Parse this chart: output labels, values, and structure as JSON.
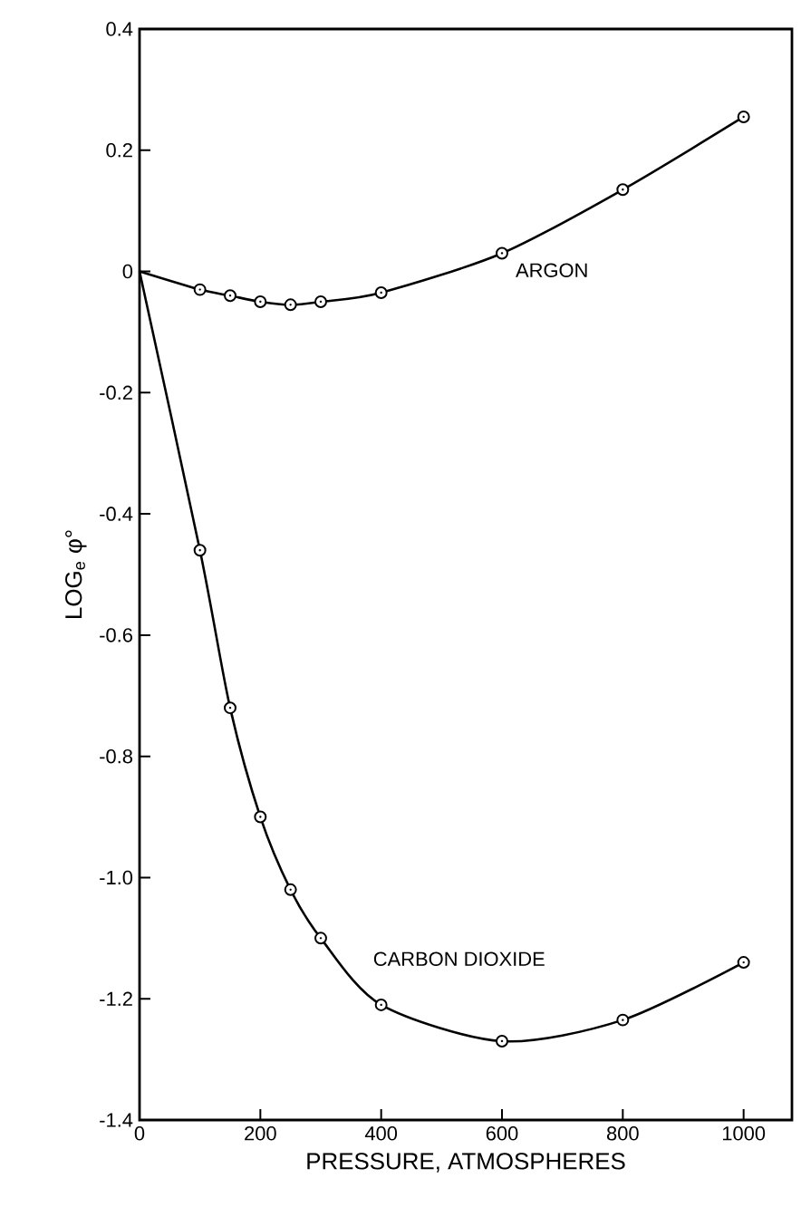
{
  "chart_data": {
    "type": "line",
    "xlabel": "PRESSURE, ATMOSPHERES",
    "ylabel": "LOG$_{e}$ φ°",
    "xlim": [
      0,
      1080
    ],
    "ylim": [
      -1.4,
      0.4
    ],
    "xticks": [
      0,
      200,
      400,
      600,
      800,
      1000
    ],
    "yticks": [
      0.4,
      0.2,
      0,
      -0.2,
      -0.4,
      -0.6,
      -0.8,
      {
        "value": -1.0,
        "label": "-1.0"
      },
      -1.2,
      -1.4
    ],
    "grid": false,
    "marker": "circle",
    "line_style": "solid",
    "series": [
      {
        "name": "ARGON",
        "color": "#000000",
        "x": [
          0,
          100,
          150,
          200,
          250,
          300,
          400,
          600,
          800,
          1000
        ],
        "values": [
          0,
          -0.03,
          -0.04,
          -0.05,
          -0.055,
          -0.05,
          -0.035,
          0.03,
          0.135,
          0.255
        ]
      },
      {
        "name": "CARBON DIOXIDE",
        "color": "#000000",
        "x": [
          0,
          100,
          150,
          200,
          250,
          300,
          400,
          600,
          800,
          1000
        ],
        "values": [
          0,
          -0.46,
          -0.72,
          -0.9,
          -1.02,
          -1.1,
          -1.21,
          -1.27,
          -1.235,
          -1.14
        ]
      }
    ]
  }
}
